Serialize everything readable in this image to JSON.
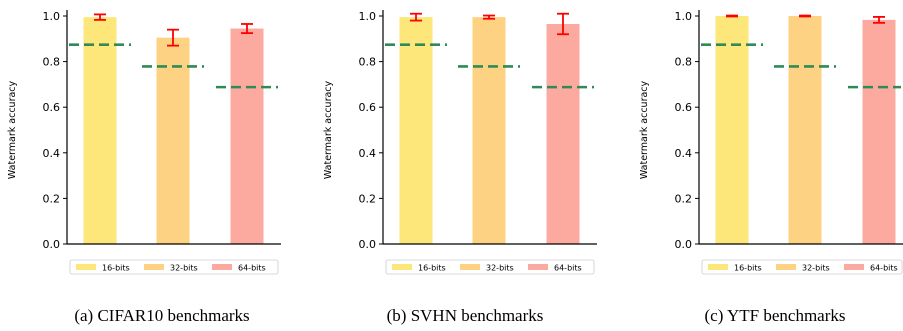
{
  "chart_data": [
    {
      "type": "bar",
      "categories": [
        "16-bits",
        "32-bits",
        "64-bits"
      ],
      "ylabel": "Watermark accuracy",
      "ylim": [
        0,
        1.0
      ],
      "yticks": [
        "0.0",
        "0.2",
        "0.4",
        "0.6",
        "0.8",
        "1.0"
      ],
      "values": [
        0.995,
        0.905,
        0.945
      ],
      "errors": [
        0.012,
        0.035,
        0.02
      ],
      "baselines": [
        0.874,
        0.779,
        0.688
      ],
      "legend": [
        "16-bits",
        "32-bits",
        "64-bits"
      ],
      "legend_placement": "bottom",
      "caption": "(a) CIFAR10 benchmarks"
    },
    {
      "type": "bar",
      "categories": [
        "16-bits",
        "32-bits",
        "64-bits"
      ],
      "ylabel": "Watermark accuracy",
      "ylim": [
        0,
        1.0
      ],
      "yticks": [
        "0.0",
        "0.2",
        "0.4",
        "0.6",
        "0.8",
        "1.0"
      ],
      "values": [
        0.995,
        0.995,
        0.965
      ],
      "errors": [
        0.015,
        0.007,
        0.045
      ],
      "baselines": [
        0.874,
        0.779,
        0.688
      ],
      "legend": [
        "16-bits",
        "32-bits",
        "64-bits"
      ],
      "legend_placement": "bottom",
      "caption": "(b) SVHN benchmarks"
    },
    {
      "type": "bar",
      "categories": [
        "16-bits",
        "32-bits",
        "64-bits"
      ],
      "ylabel": "Watermark accuracy",
      "ylim": [
        0,
        1.0
      ],
      "yticks": [
        "0.0",
        "0.2",
        "0.4",
        "0.6",
        "0.8",
        "1.0"
      ],
      "values": [
        1.0,
        1.0,
        0.983
      ],
      "errors": [
        0.002,
        0.002,
        0.013
      ],
      "baselines": [
        0.874,
        0.779,
        0.688
      ],
      "legend": [
        "16-bits",
        "32-bits",
        "64-bits"
      ],
      "legend_placement": "bottom",
      "caption": "(c) YTF benchmarks"
    }
  ],
  "colors": {
    "bars": [
      "#fde67a",
      "#fdd282",
      "#fcaaa0"
    ],
    "error_bar": "#ff0000",
    "baseline": "#2e8b57",
    "axis": "#000000"
  }
}
